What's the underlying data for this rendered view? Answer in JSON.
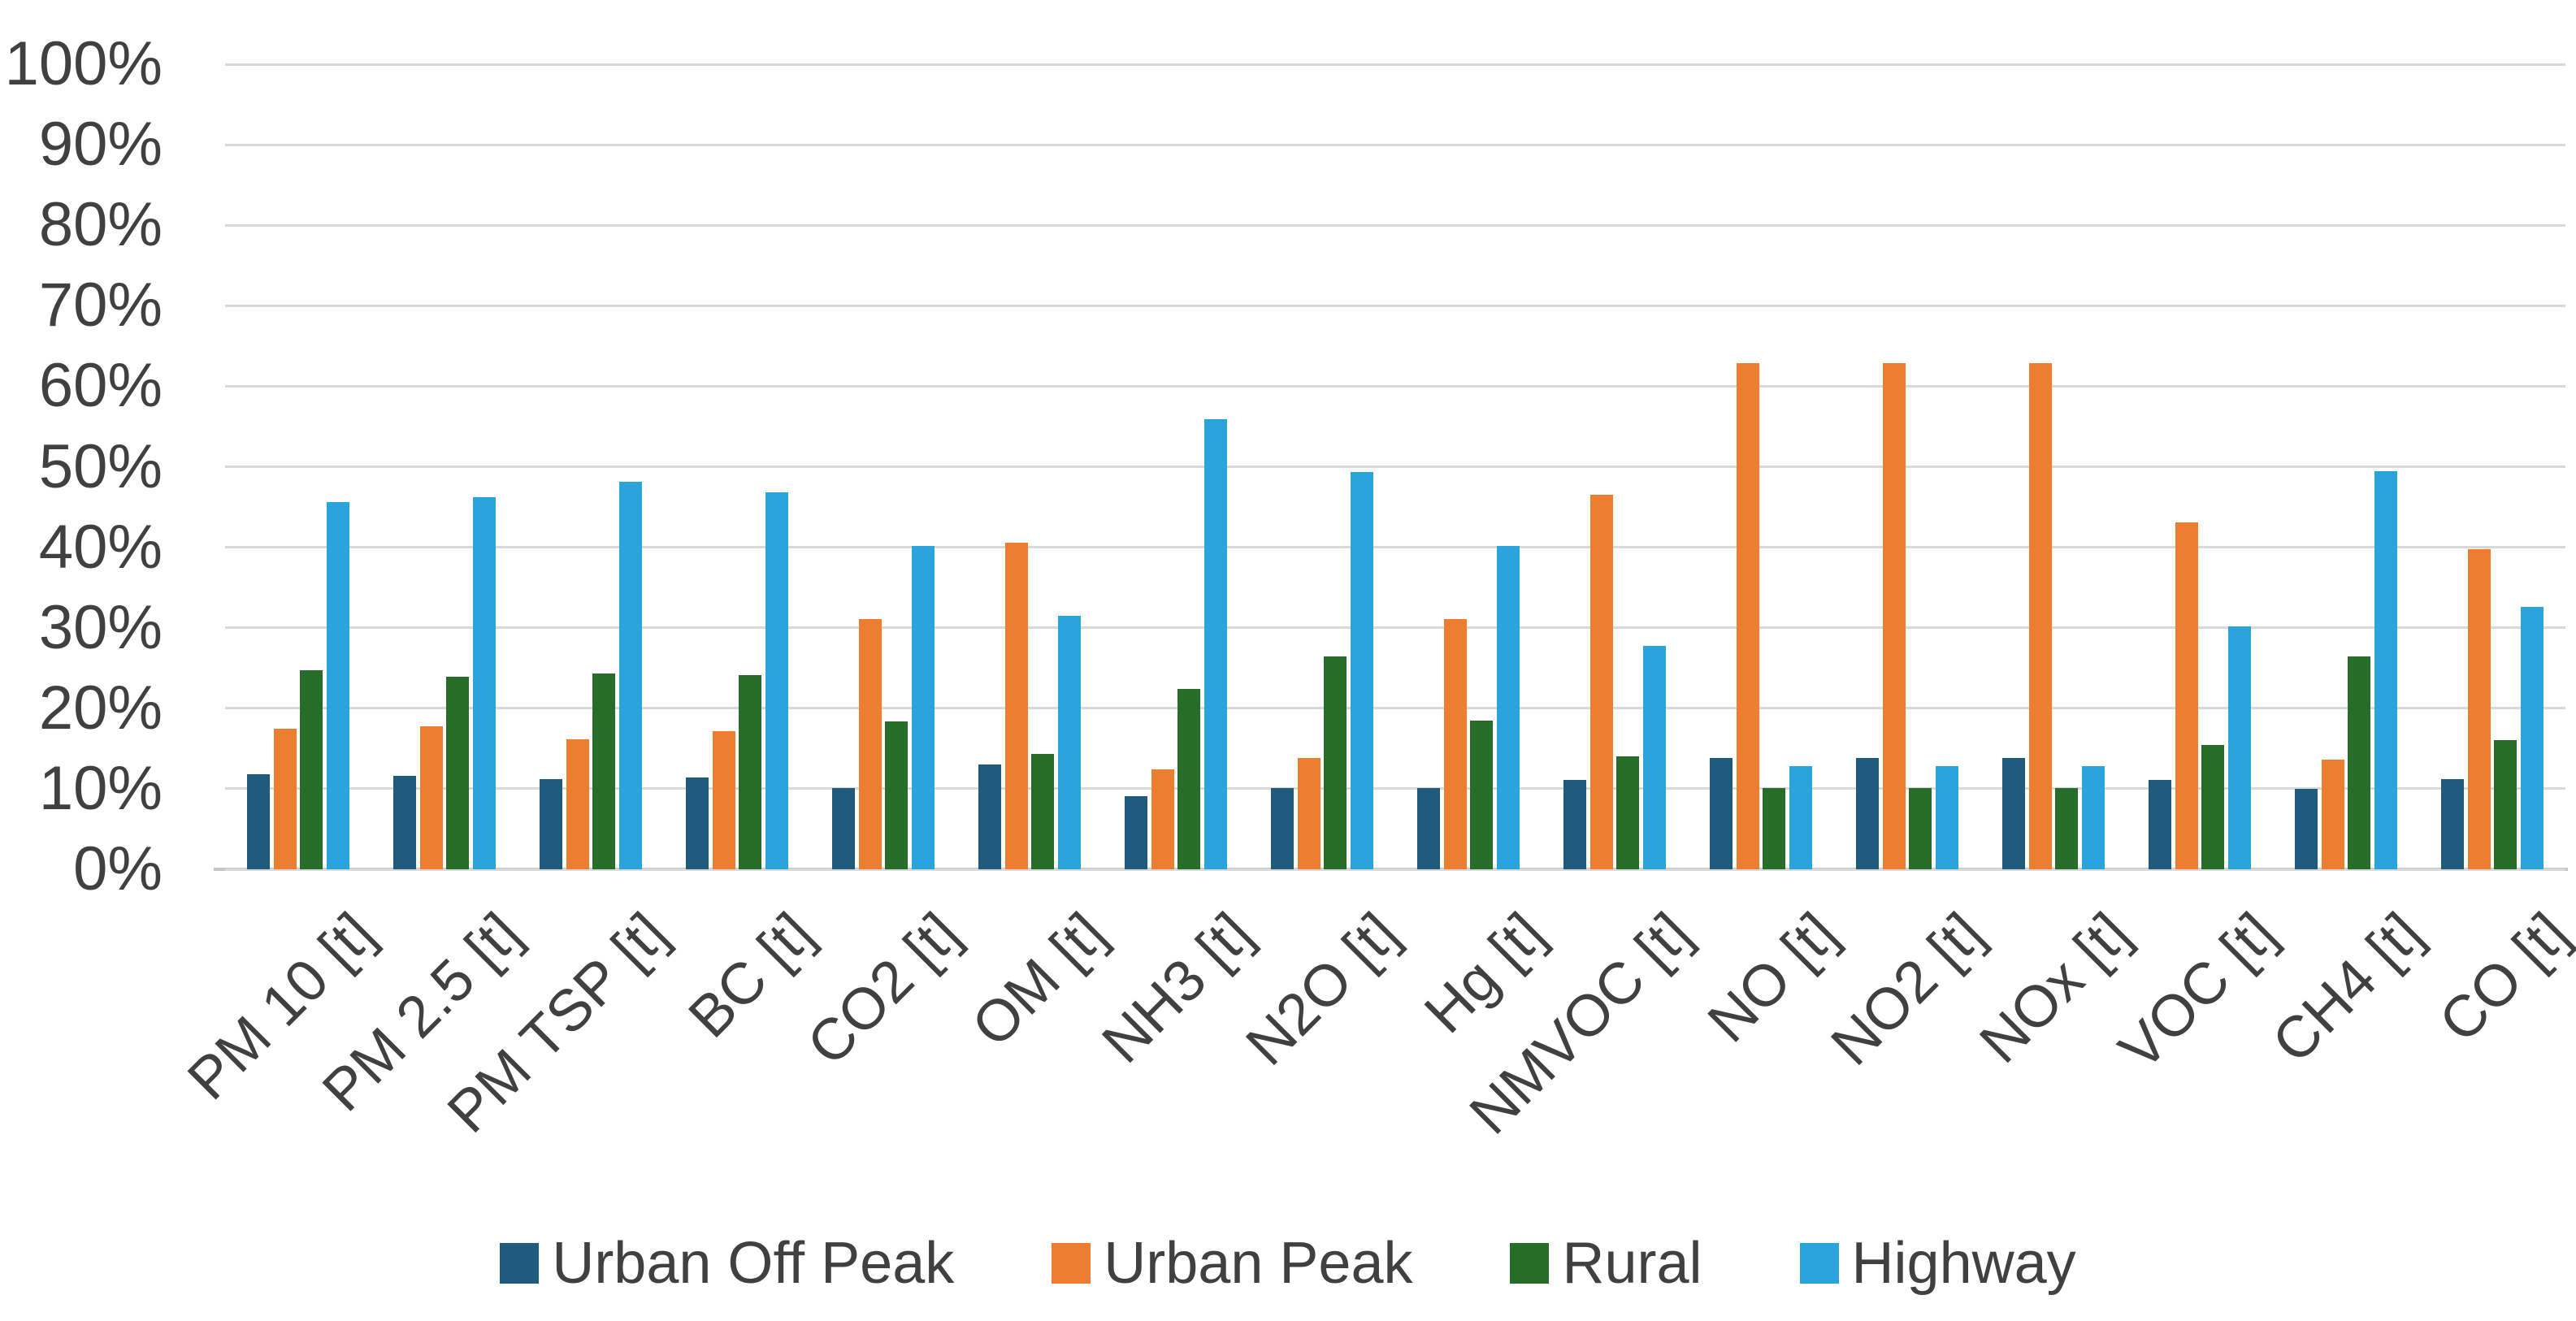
{
  "chart_data": {
    "type": "bar",
    "title": "",
    "xlabel": "",
    "ylabel": "",
    "ylim": [
      0,
      100
    ],
    "y_tick_step": 10,
    "y_ticks": [
      "0%",
      "10%",
      "20%",
      "30%",
      "40%",
      "50%",
      "60%",
      "70%",
      "80%",
      "90%",
      "100%"
    ],
    "grid": true,
    "legend_position": "bottom",
    "value_unit": "percent of total per category",
    "categories": [
      "PM 10 [t]",
      "PM 2.5 [t]",
      "PM TSP [t]",
      "BC [t]",
      "CO2 [t]",
      "OM [t]",
      "NH3 [t]",
      "N2O [t]",
      "Hg [t]",
      "NMVOC [t]",
      "NO [t]",
      "NO2 [t]",
      "NOx [t]",
      "VOC [t]",
      "CH4 [t]",
      "CO [t]"
    ],
    "series": [
      {
        "name": "Urban Off Peak",
        "color": "#1f5b7c",
        "values": [
          11.8,
          11.6,
          11.2,
          11.4,
          10.1,
          13.0,
          9.1,
          10.1,
          10.1,
          11.1,
          13.8,
          13.8,
          13.8,
          11.1,
          10.0,
          11.2
        ]
      },
      {
        "name": "Urban Peak",
        "color": "#ed7d31",
        "values": [
          17.5,
          17.8,
          16.1,
          17.2,
          31.1,
          40.6,
          12.4,
          13.8,
          31.1,
          46.5,
          62.9,
          62.9,
          62.9,
          43.1,
          13.6,
          39.8
        ]
      },
      {
        "name": "Rural",
        "color": "#256d28",
        "values": [
          24.7,
          23.9,
          24.3,
          24.1,
          18.4,
          14.3,
          22.4,
          26.4,
          18.5,
          14.0,
          10.1,
          10.1,
          10.1,
          15.4,
          26.4,
          16.0
        ]
      },
      {
        "name": "Highway",
        "color": "#2ba4dc",
        "values": [
          45.6,
          46.2,
          48.1,
          46.8,
          40.2,
          31.5,
          55.9,
          49.3,
          40.2,
          27.8,
          12.8,
          12.8,
          12.8,
          30.2,
          49.4,
          32.6
        ]
      }
    ]
  },
  "colors": {
    "background": "#ffffff",
    "gridline": "#d9d9d9",
    "axis_line": "#c6c6c6",
    "text": "#404040"
  }
}
